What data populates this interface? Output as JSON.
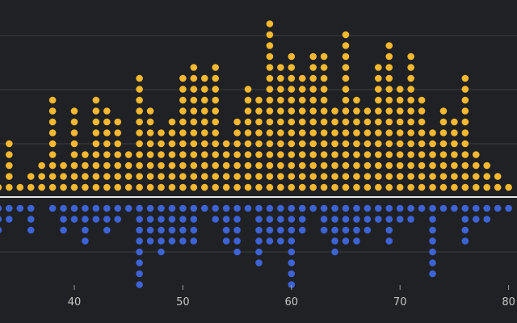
{
  "chart_data": {
    "type": "scatter",
    "subtype": "mirrored-dot-histogram",
    "title": "",
    "xlabel": "",
    "ylabel": "",
    "xlim": [
      32,
      80
    ],
    "x_ticks": [
      "40",
      "50",
      "60",
      "70",
      "80"
    ],
    "x": [
      33,
      34,
      35,
      36,
      37,
      38,
      39,
      40,
      41,
      42,
      43,
      44,
      45,
      46,
      47,
      48,
      49,
      50,
      51,
      52,
      53,
      54,
      55,
      56,
      57,
      58,
      59,
      60,
      61,
      62,
      63,
      64,
      65,
      66,
      67,
      68,
      69,
      70,
      71,
      72,
      73,
      74,
      75,
      76,
      77,
      78,
      79,
      80
    ],
    "series": [
      {
        "color": "#f5b82e",
        "direction": "up",
        "values": [
          1,
          5,
          1,
          2,
          3,
          9,
          3,
          8,
          4,
          9,
          8,
          7,
          4,
          11,
          8,
          6,
          7,
          11,
          12,
          11,
          12,
          5,
          7,
          10,
          9,
          16,
          12,
          13,
          11,
          13,
          13,
          8,
          15,
          9,
          8,
          12,
          14,
          10,
          13,
          9,
          6,
          8,
          7,
          11,
          4,
          3,
          2,
          1
        ]
      },
      {
        "color": "#3d63d6",
        "direction": "down",
        "values": [
          3,
          2,
          1,
          3,
          0,
          1,
          3,
          2,
          4,
          2,
          3,
          2,
          1,
          8,
          4,
          5,
          4,
          4,
          4,
          1,
          2,
          4,
          5,
          1,
          6,
          4,
          4,
          8,
          3,
          1,
          3,
          5,
          4,
          4,
          3,
          2,
          4,
          2,
          2,
          1,
          7,
          1,
          1,
          4,
          2,
          2,
          1,
          1
        ]
      }
    ]
  }
}
